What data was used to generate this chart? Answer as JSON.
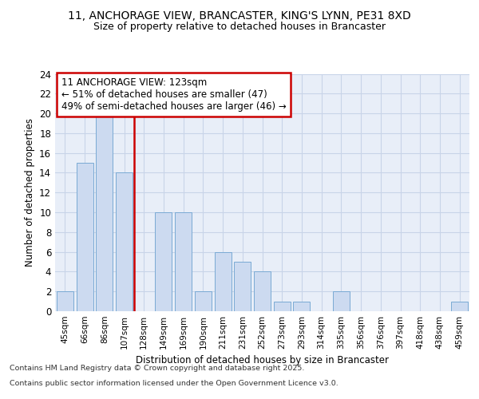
{
  "title1": "11, ANCHORAGE VIEW, BRANCASTER, KING'S LYNN, PE31 8XD",
  "title2": "Size of property relative to detached houses in Brancaster",
  "xlabel": "Distribution of detached houses by size in Brancaster",
  "ylabel": "Number of detached properties",
  "categories": [
    "45sqm",
    "66sqm",
    "86sqm",
    "107sqm",
    "128sqm",
    "149sqm",
    "169sqm",
    "190sqm",
    "211sqm",
    "231sqm",
    "252sqm",
    "273sqm",
    "293sqm",
    "314sqm",
    "335sqm",
    "356sqm",
    "376sqm",
    "397sqm",
    "418sqm",
    "438sqm",
    "459sqm"
  ],
  "values": [
    2,
    15,
    20,
    14,
    0,
    10,
    10,
    2,
    6,
    5,
    4,
    1,
    1,
    0,
    2,
    0,
    0,
    0,
    0,
    0,
    1
  ],
  "bar_color": "#ccdaf0",
  "bar_edge_color": "#7aaad4",
  "grid_color": "#c8d4e8",
  "bg_color": "#e8eef8",
  "vline_x": 3.5,
  "vline_color": "#cc0000",
  "annotation_text": "11 ANCHORAGE VIEW: 123sqm\n← 51% of detached houses are smaller (47)\n49% of semi-detached houses are larger (46) →",
  "annotation_box_color": "#ffffff",
  "annotation_box_edge": "#cc0000",
  "footer1": "Contains HM Land Registry data © Crown copyright and database right 2025.",
  "footer2": "Contains public sector information licensed under the Open Government Licence v3.0.",
  "ylim": [
    0,
    24
  ],
  "yticks": [
    0,
    2,
    4,
    6,
    8,
    10,
    12,
    14,
    16,
    18,
    20,
    22,
    24
  ]
}
